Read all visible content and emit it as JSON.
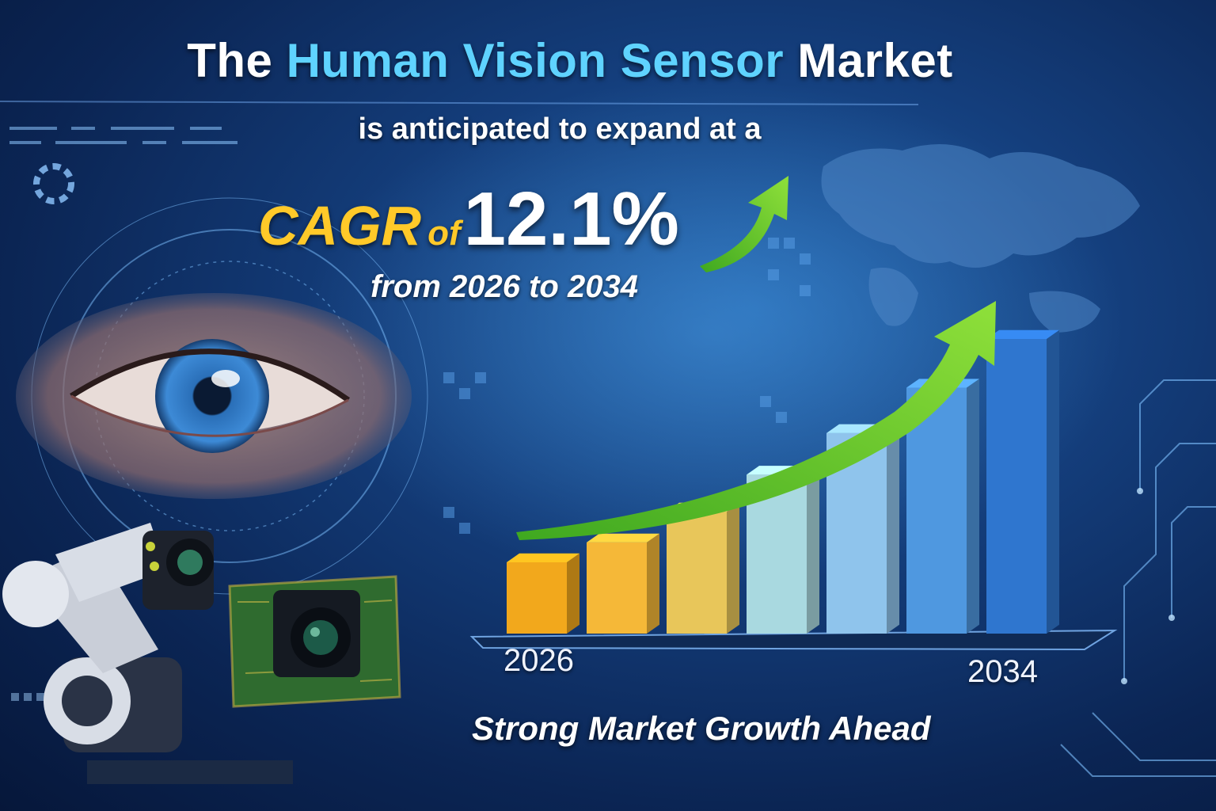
{
  "headline": {
    "prefix": "The ",
    "highlight": "Human Vision Sensor",
    "suffix": " Market"
  },
  "subheading": "is anticipated to expand at a",
  "cagr": {
    "label": "CAGR",
    "connector": "of",
    "value": "12.1%"
  },
  "period": "from 2026 to 2034",
  "chart": {
    "year_start_label": "2026",
    "year_end_label": "2034",
    "bar_count": 7,
    "bar_colors": [
      "#f2a81c",
      "#f5b838",
      "#e8c65a",
      "#a9d9e0",
      "#8fc4ec",
      "#4f98e0",
      "#2f76cf"
    ],
    "trend": "upward"
  },
  "tagline": "Strong Market Growth Ahead",
  "colors": {
    "highlight": "#5fd3ff",
    "cagr": "#ffc929",
    "arrow": "#5fc92e",
    "background": "#0b2554"
  },
  "illustrations": [
    "human-eye",
    "robotic-arm-camera",
    "camera-sensor-board",
    "world-map",
    "circuit-lines"
  ]
}
